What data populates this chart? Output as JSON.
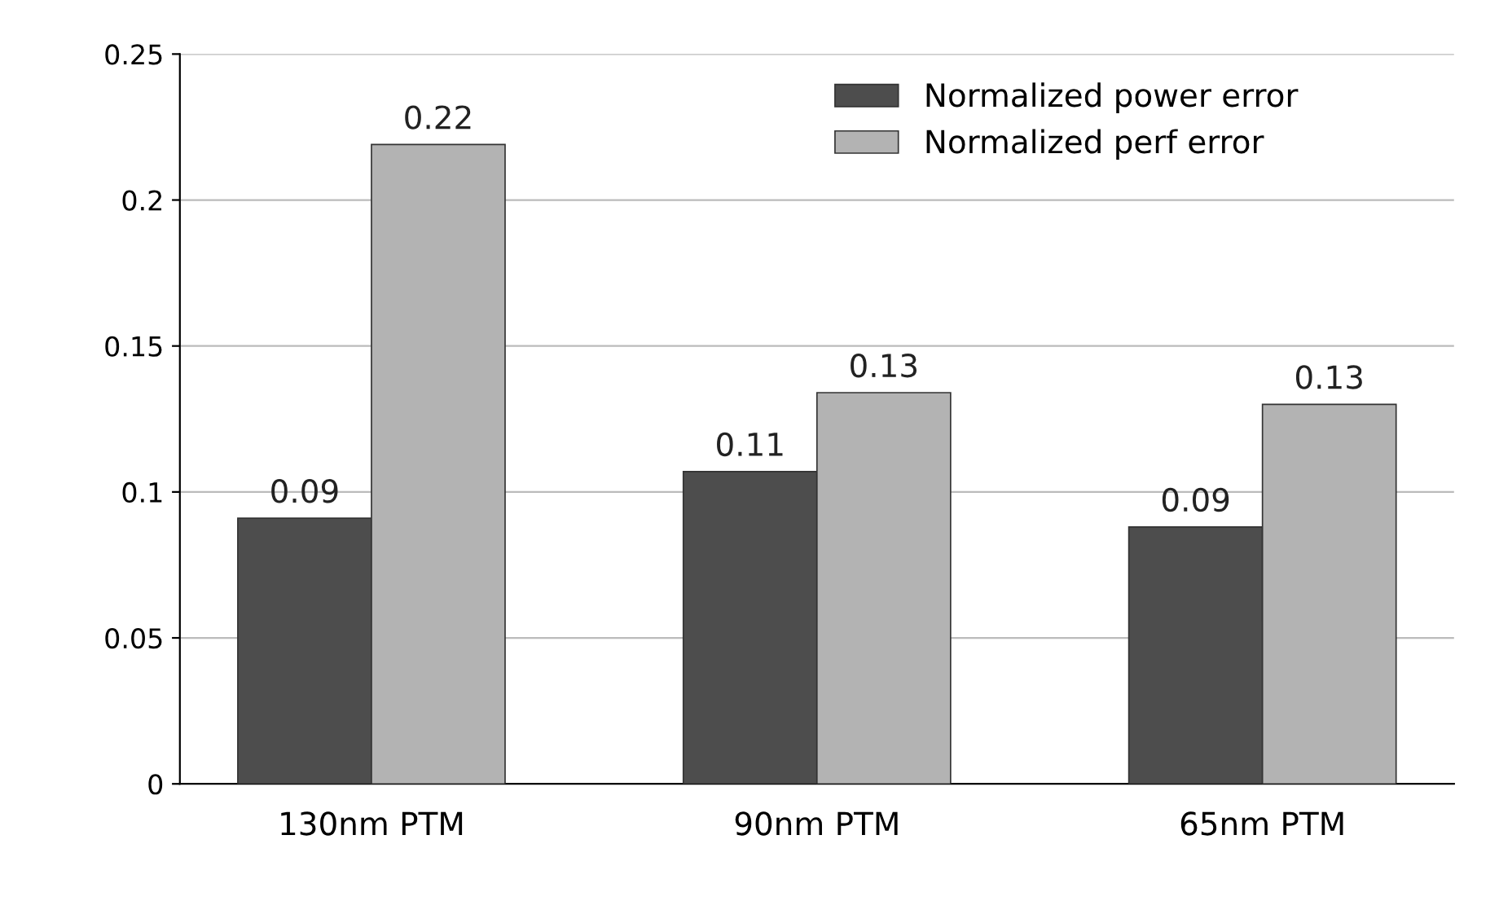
{
  "chart_data": {
    "type": "bar",
    "categories": [
      "130nm PTM",
      "90nm PTM",
      "65nm PTM"
    ],
    "series": [
      {
        "name": "Normalized power error",
        "color": "#4d4d4d",
        "values": [
          0.091,
          0.107,
          0.088
        ],
        "value_labels": [
          "0.09",
          "0.11",
          "0.09"
        ]
      },
      {
        "name": "Normalized perf error",
        "color": "#b3b3b3",
        "values": [
          0.219,
          0.134,
          0.13
        ],
        "value_labels": [
          "0.22",
          "0.13",
          "0.13"
        ]
      }
    ],
    "ylim": [
      0,
      0.25
    ],
    "yticks": [
      0,
      0.05,
      0.1,
      0.15,
      0.2,
      0.25
    ],
    "grid": "y",
    "legend": "top right"
  }
}
